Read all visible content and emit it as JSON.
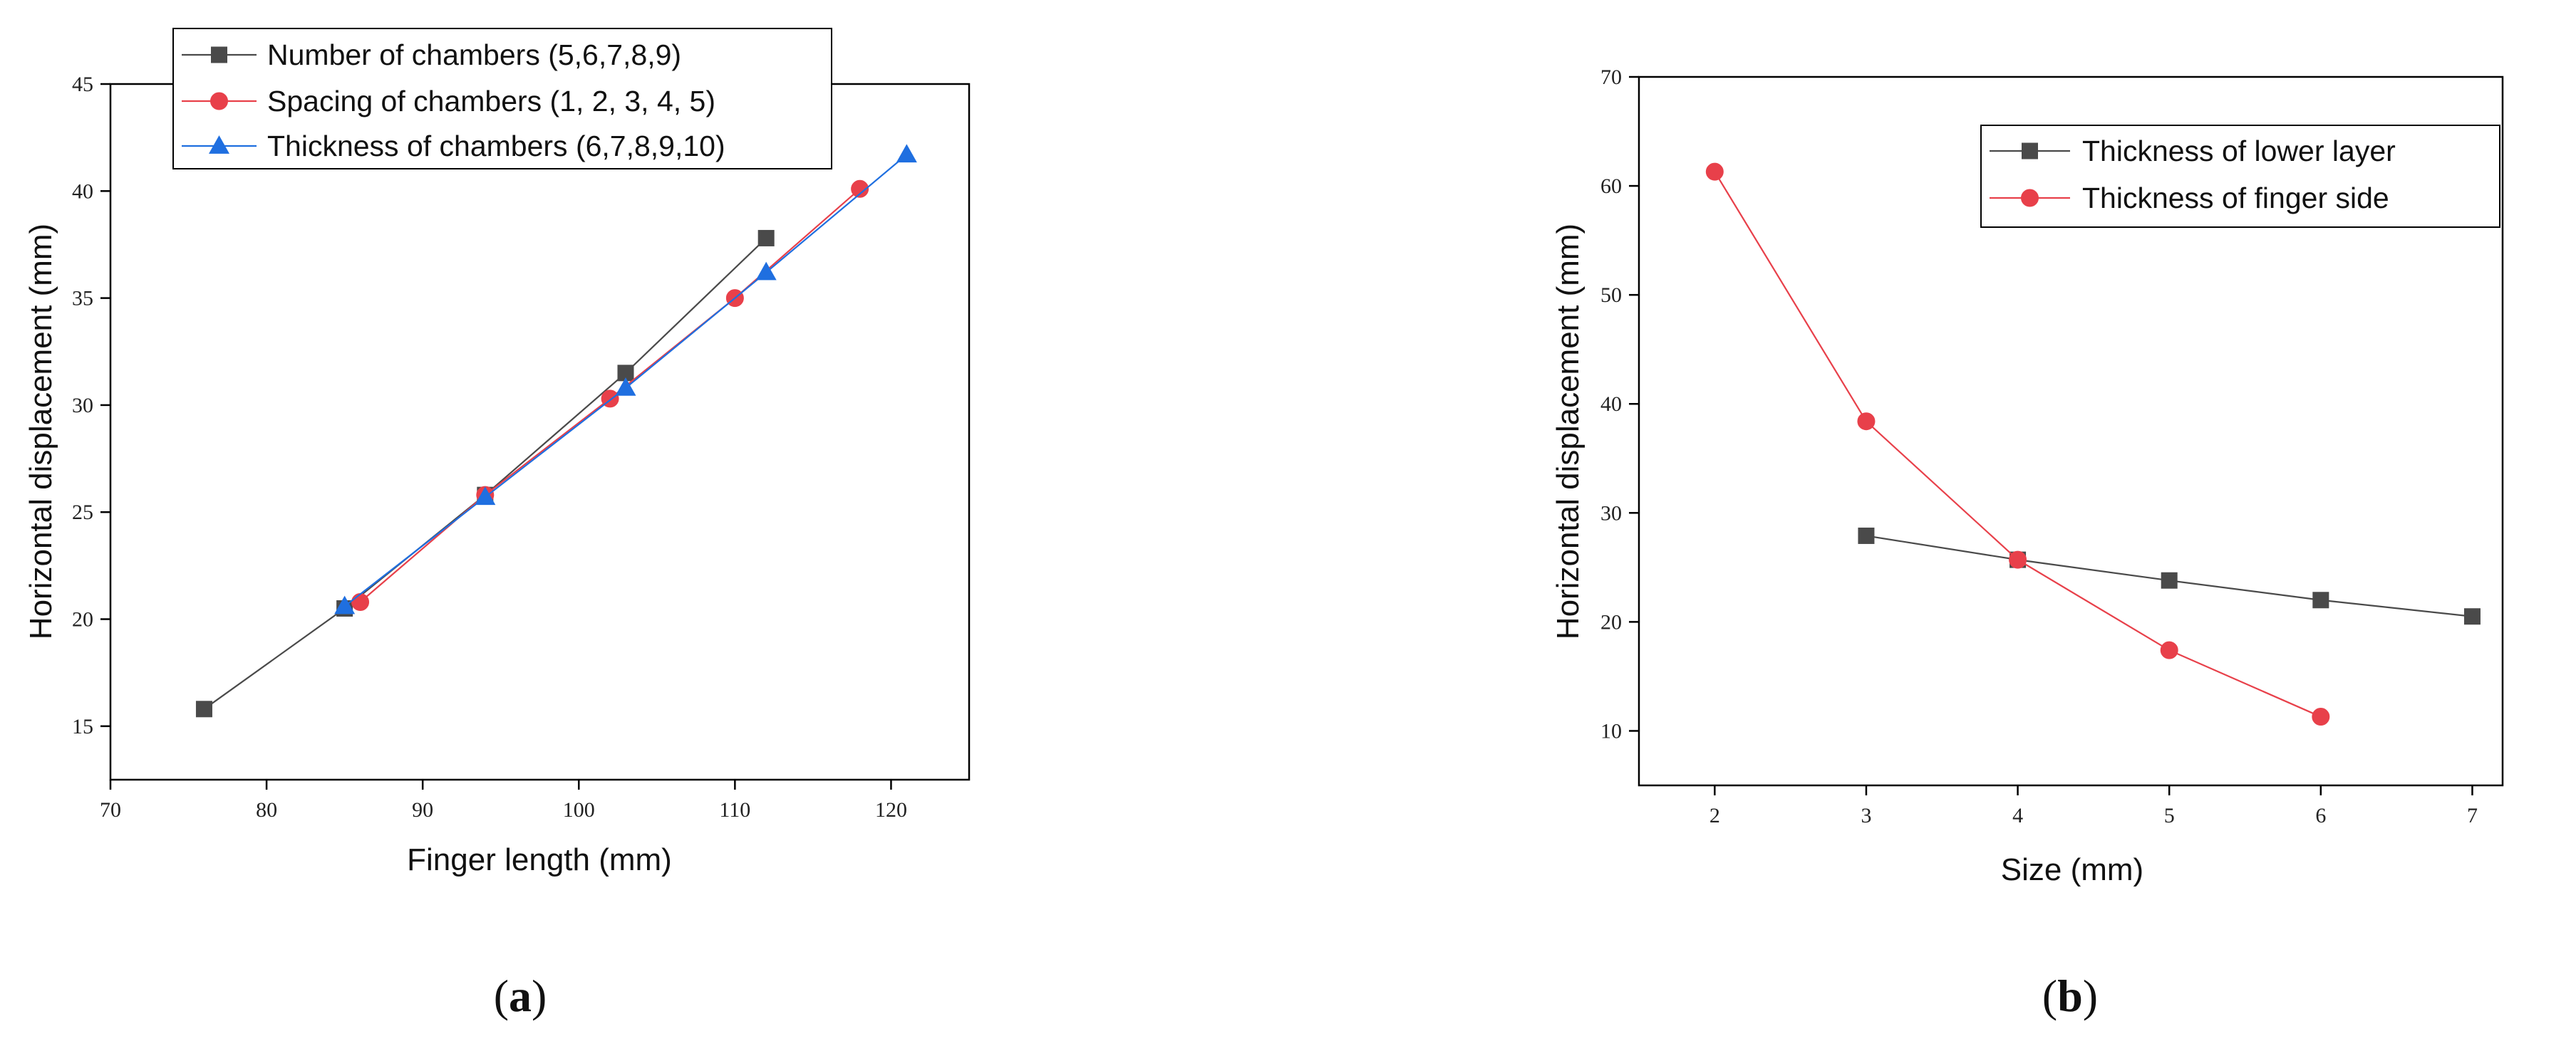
{
  "chart_data": [
    {
      "type": "line",
      "panel_label": "(a)",
      "panel_letter": "a",
      "xlabel": "Finger length (mm)",
      "ylabel": "Horizontal displacement (mm)",
      "xlim": [
        70,
        125
      ],
      "ylim": [
        12.5,
        45
      ],
      "xticks": [
        70,
        80,
        90,
        100,
        110,
        120
      ],
      "yticks": [
        15,
        20,
        25,
        30,
        35,
        40,
        45
      ],
      "grid": false,
      "legend_position": "top-left",
      "series": [
        {
          "name": "Number of chambers (5,6,7,8,9)",
          "marker": "square",
          "color": "#4a4a4a",
          "x": [
            76,
            85,
            94,
            103,
            112
          ],
          "y": [
            15.8,
            20.5,
            25.8,
            31.5,
            37.8
          ]
        },
        {
          "name": "Spacing of chambers (1, 2, 3, 4, 5)",
          "marker": "circle",
          "color": "#e8404a",
          "x": [
            86,
            94,
            102,
            110,
            118
          ],
          "y": [
            20.8,
            25.8,
            30.3,
            35.0,
            40.1
          ]
        },
        {
          "name": "Thickness of chambers (6,7,8,9,10)",
          "marker": "triangle",
          "color": "#1f6fe0",
          "x": [
            85,
            94,
            103,
            112,
            121
          ],
          "y": [
            20.6,
            25.7,
            30.8,
            36.2,
            41.7
          ]
        }
      ]
    },
    {
      "type": "line",
      "panel_label": "(b)",
      "panel_letter": "b",
      "xlabel": "Size (mm)",
      "ylabel": "Horizontal displacement (mm)",
      "xlim": [
        1.5,
        7.2
      ],
      "ylim": [
        5,
        70
      ],
      "xticks": [
        2,
        3,
        4,
        5,
        6,
        7
      ],
      "yticks": [
        10,
        20,
        30,
        40,
        50,
        60,
        70
      ],
      "grid": false,
      "legend_position": "top-right",
      "series": [
        {
          "name": "Thickness of lower layer",
          "marker": "square",
          "color": "#4a4a4a",
          "x": [
            3,
            4,
            5,
            6,
            7
          ],
          "y": [
            27.9,
            25.7,
            23.8,
            22.0,
            20.5
          ]
        },
        {
          "name": "Thickness of finger side",
          "marker": "circle",
          "color": "#e8404a",
          "x": [
            2,
            3,
            4,
            5,
            6
          ],
          "y": [
            61.3,
            38.4,
            25.7,
            17.4,
            11.3
          ]
        }
      ]
    }
  ]
}
